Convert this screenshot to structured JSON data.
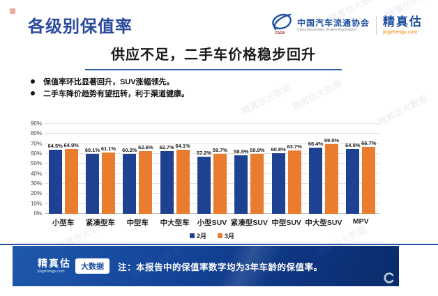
{
  "header": {
    "title": "各级别保值率",
    "logos": {
      "org_cn": "中国汽车流通协会",
      "org_en": "China Automobile Dealers Association",
      "org_icon": "cada-globe-swoosh-icon",
      "brand": "精真估",
      "brand_site": "jingzhengu.com"
    }
  },
  "content": {
    "subtitle": "供应不足，二手车价格稳步回升",
    "bullets": [
      "保值率环比显著回升，SUV涨幅领先。",
      "二手车降价趋势有望扭转，利于渠道健康。"
    ]
  },
  "chart_data": {
    "type": "bar",
    "title": "",
    "categories": [
      "小型车",
      "紧凑型车",
      "中型车",
      "中大型车",
      "小型SUV",
      "紧凑型SUV",
      "中型SUV",
      "中大型SUV",
      "MPV"
    ],
    "series": [
      {
        "name": "2月",
        "color": "#1F4191",
        "values": [
          64.5,
          60.1,
          60.2,
          62.7,
          57.2,
          58.5,
          60.8,
          66.4,
          64.9
        ]
      },
      {
        "name": "3月",
        "color": "#E97C2E",
        "values": [
          64.9,
          61.1,
          62.6,
          64.1,
          59.7,
          59.8,
          63.7,
          69.5,
          66.7
        ]
      }
    ],
    "xlabel": "",
    "ylabel": "",
    "ylim": [
      0,
      90
    ],
    "yticks": [
      "0%",
      "10%",
      "20%",
      "30%",
      "40%",
      "50%",
      "60%",
      "70%",
      "80%",
      "90%"
    ],
    "grid": true,
    "legend_position": "bottom",
    "value_label_suffix": "%"
  },
  "footer": {
    "brand": "精真估",
    "brand_site": "jingzhengu.com",
    "badge": "大数据",
    "note": "注：本报告中的保值率数字均为3年车龄的保值率。",
    "icon": "circle-c-icon"
  },
  "watermark": "精真估大数据",
  "colors": {
    "accent_blue": "#1F4B9D",
    "bar_blue": "#1F4191",
    "bar_orange": "#E97C2E",
    "underline_blue": "#2A5BA6",
    "footer_gradient_start": "#1E58AB",
    "footer_gradient_end": "#0A2C6B",
    "site_orange": "#F08300"
  }
}
